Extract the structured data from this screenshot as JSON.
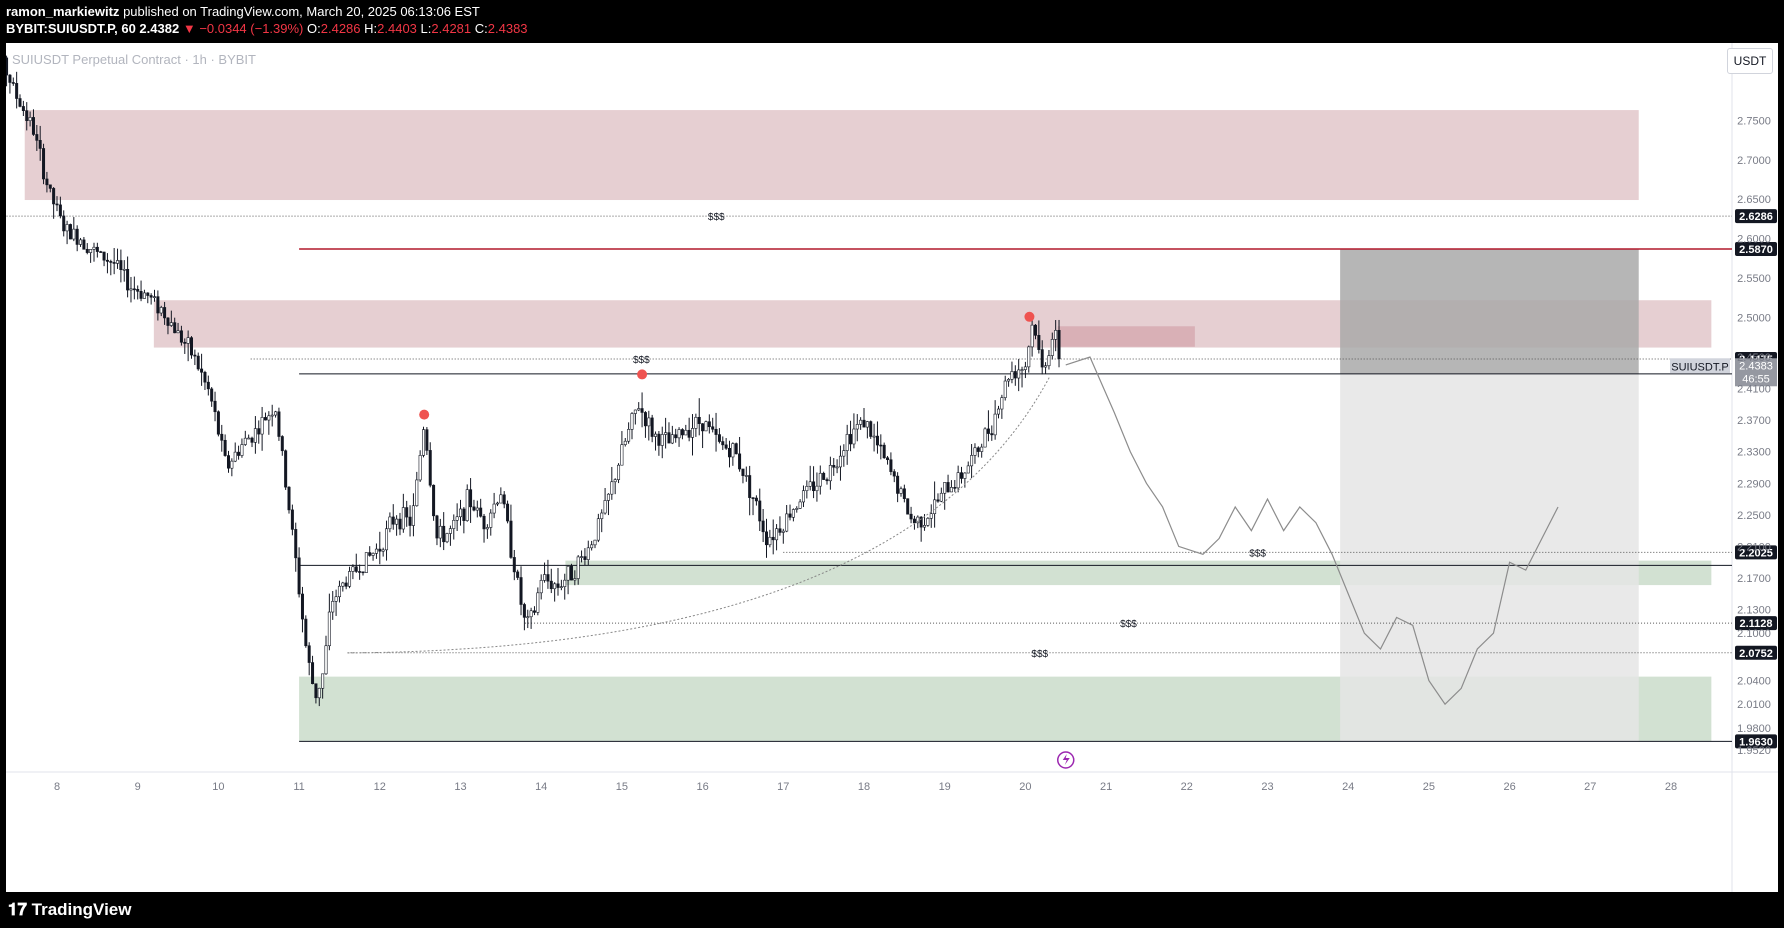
{
  "header": {
    "publisher": "ramon_markiewitz",
    "published_text": "published on TradingView.com, March 20, 2025 06:13:06 EST",
    "symbol": "BYBIT:SUIUSDT.P, 60",
    "last": "2.4382",
    "change": "−0.0344 (−1.39%)",
    "o_label": "O:",
    "o": "2.4286",
    "h_label": "H:",
    "h": "2.4403",
    "l_label": "L:",
    "l": "2.4281",
    "c_label": "C:",
    "c": "2.4383"
  },
  "chart_title": "SUIUSDT Perpetual Contract · 1h · BYBIT",
  "currency_button": "USDT",
  "footer": {
    "logo_text": "TradingView"
  },
  "colors": {
    "supply_zone": "#e6cfd2",
    "demand_zone": "#d2e1d2",
    "red_line": "#b2182b",
    "candle": "#131722",
    "projection": "#8c8c8c",
    "target_box": "#e5e5e5",
    "stop_box": "#a9a9a9",
    "peak_marker": "#ef5350"
  },
  "chart_data": {
    "type": "candlestick",
    "symbol": "SUIUSDT.P",
    "interval": "1h",
    "exchange": "BYBIT",
    "ylim": [
      1.952,
      2.848
    ],
    "y_ticks": [
      "2.7500",
      "2.7000",
      "2.6500",
      "2.6000",
      "2.5500",
      "2.5000",
      "2.4500",
      "2.4100",
      "2.3700",
      "2.3300",
      "2.2900",
      "2.2500",
      "2.2100",
      "2.1700",
      "2.1300",
      "2.1000",
      "2.0400",
      "2.0100",
      "1.9800",
      "1.9520"
    ],
    "x_ticks": [
      "8",
      "9",
      "10",
      "11",
      "12",
      "13",
      "14",
      "15",
      "16",
      "17",
      "18",
      "19",
      "20",
      "21",
      "22",
      "23",
      "24",
      "25",
      "26",
      "27",
      "28"
    ],
    "price_path": [
      [
        7.0,
        2.7
      ],
      [
        7.15,
        2.79
      ],
      [
        7.3,
        2.83
      ],
      [
        7.5,
        2.78
      ],
      [
        7.7,
        2.74
      ],
      [
        7.9,
        2.66
      ],
      [
        8.1,
        2.61
      ],
      [
        8.3,
        2.6
      ],
      [
        8.5,
        2.58
      ],
      [
        8.7,
        2.57
      ],
      [
        8.9,
        2.54
      ],
      [
        9.1,
        2.53
      ],
      [
        9.3,
        2.51
      ],
      [
        9.5,
        2.48
      ],
      [
        9.7,
        2.45
      ],
      [
        9.9,
        2.4
      ],
      [
        10.1,
        2.31
      ],
      [
        10.3,
        2.34
      ],
      [
        10.5,
        2.36
      ],
      [
        10.7,
        2.39
      ],
      [
        10.9,
        2.24
      ],
      [
        11.1,
        2.07
      ],
      [
        11.2,
        2.02
      ],
      [
        11.3,
        2.05
      ],
      [
        11.4,
        2.14
      ],
      [
        11.6,
        2.17
      ],
      [
        11.8,
        2.19
      ],
      [
        12.0,
        2.21
      ],
      [
        12.2,
        2.25
      ],
      [
        12.4,
        2.24
      ],
      [
        12.55,
        2.37
      ],
      [
        12.7,
        2.22
      ],
      [
        12.9,
        2.23
      ],
      [
        13.1,
        2.27
      ],
      [
        13.3,
        2.24
      ],
      [
        13.5,
        2.28
      ],
      [
        13.8,
        2.11
      ],
      [
        13.9,
        2.12
      ],
      [
        14.0,
        2.17
      ],
      [
        14.2,
        2.16
      ],
      [
        14.4,
        2.18
      ],
      [
        14.6,
        2.21
      ],
      [
        14.8,
        2.26
      ],
      [
        15.0,
        2.33
      ],
      [
        15.2,
        2.39
      ],
      [
        15.4,
        2.35
      ],
      [
        15.6,
        2.34
      ],
      [
        15.8,
        2.36
      ],
      [
        16.0,
        2.37
      ],
      [
        16.2,
        2.34
      ],
      [
        16.4,
        2.33
      ],
      [
        16.6,
        2.28
      ],
      [
        16.8,
        2.22
      ],
      [
        17.0,
        2.24
      ],
      [
        17.2,
        2.27
      ],
      [
        17.4,
        2.29
      ],
      [
        17.6,
        2.31
      ],
      [
        17.8,
        2.35
      ],
      [
        18.0,
        2.37
      ],
      [
        18.2,
        2.33
      ],
      [
        18.4,
        2.29
      ],
      [
        18.6,
        2.24
      ],
      [
        18.8,
        2.25
      ],
      [
        19.0,
        2.28
      ],
      [
        19.2,
        2.3
      ],
      [
        19.4,
        2.33
      ],
      [
        19.6,
        2.37
      ],
      [
        19.8,
        2.43
      ],
      [
        20.0,
        2.44
      ],
      [
        20.1,
        2.5
      ],
      [
        20.2,
        2.43
      ],
      [
        20.35,
        2.48
      ],
      [
        20.45,
        2.44
      ]
    ],
    "peaks": [
      {
        "date": 12.55,
        "price": 2.377
      },
      {
        "date": 15.25,
        "price": 2.428
      },
      {
        "date": 20.05,
        "price": 2.501
      }
    ],
    "projection_path": [
      [
        20.5,
        2.44
      ],
      [
        20.8,
        2.45
      ],
      [
        21.1,
        2.38
      ],
      [
        21.3,
        2.33
      ],
      [
        21.5,
        2.29
      ],
      [
        21.7,
        2.26
      ],
      [
        21.9,
        2.21
      ],
      [
        22.2,
        2.2
      ],
      [
        22.4,
        2.22
      ],
      [
        22.6,
        2.26
      ],
      [
        22.8,
        2.23
      ],
      [
        23.0,
        2.27
      ],
      [
        23.2,
        2.23
      ],
      [
        23.4,
        2.26
      ],
      [
        23.6,
        2.24
      ],
      [
        23.8,
        2.2
      ],
      [
        24.0,
        2.15
      ],
      [
        24.2,
        2.1
      ],
      [
        24.4,
        2.08
      ],
      [
        24.6,
        2.12
      ],
      [
        24.8,
        2.11
      ],
      [
        25.0,
        2.04
      ],
      [
        25.2,
        2.01
      ],
      [
        25.4,
        2.03
      ],
      [
        25.6,
        2.08
      ],
      [
        25.8,
        2.1
      ],
      [
        26.0,
        2.19
      ],
      [
        26.2,
        2.18
      ],
      [
        26.4,
        2.22
      ],
      [
        26.6,
        2.26
      ]
    ],
    "zones": [
      {
        "kind": "supply",
        "from": 7.6,
        "to": 27.6,
        "low": 2.649,
        "high": 2.763
      },
      {
        "kind": "supply",
        "from": 9.2,
        "to": 28.5,
        "low": 2.462,
        "high": 2.522
      },
      {
        "kind": "supply-small",
        "from": 20.4,
        "to": 22.1,
        "low": 2.463,
        "high": 2.489
      },
      {
        "kind": "demand",
        "from": 14.3,
        "to": 28.5,
        "low": 2.161,
        "high": 2.192
      },
      {
        "kind": "demand",
        "from": 11.0,
        "to": 28.5,
        "low": 1.963,
        "high": 2.045
      }
    ],
    "horizontal_levels": [
      {
        "price": 2.6286,
        "from": 7.3,
        "style": "dotted",
        "tag": "2.6286",
        "annotation": "$$$"
      },
      {
        "price": 2.587,
        "from": 11.0,
        "style": "solid-red",
        "tag": "2.5870"
      },
      {
        "price": 2.4475,
        "from": 10.4,
        "style": "dotted",
        "tag": "2.4475",
        "annotation": "$$$"
      },
      {
        "price": 2.4287,
        "from": 11.0,
        "style": "solid",
        "tag": "2.4287"
      },
      {
        "price": 2.2025,
        "from": 17.0,
        "style": "dotted",
        "tag": "2.2025",
        "annotation": "$$$"
      },
      {
        "price": 2.186,
        "from": 11.0,
        "style": "solid"
      },
      {
        "price": 2.1128,
        "from": 13.8,
        "style": "dotted",
        "tag": "2.1128",
        "annotation": "$$$"
      },
      {
        "price": 2.0752,
        "from": 11.6,
        "style": "dotted",
        "tag": "2.0752",
        "annotation": "$$$"
      },
      {
        "price": 1.963,
        "from": 11.0,
        "style": "solid",
        "tag": "1.9630"
      }
    ],
    "current_price": {
      "symbol_label": "SUIUSDT.P",
      "price": "2.4383",
      "countdown": "46:55"
    },
    "position": {
      "entry": 2.4287,
      "stop": 2.587,
      "target": 1.963,
      "from": 23.9,
      "to": 27.6
    }
  }
}
